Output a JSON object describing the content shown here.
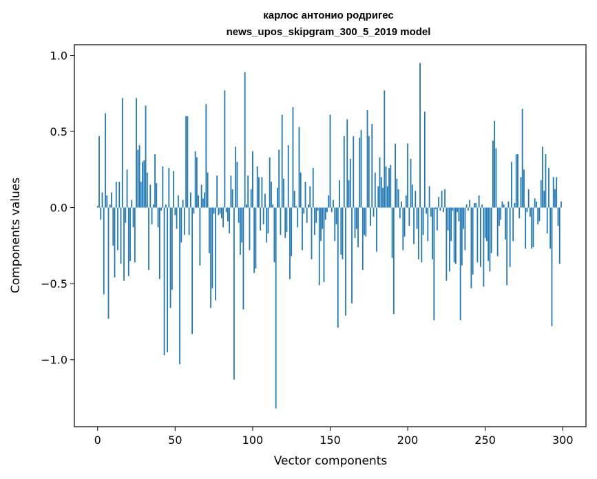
{
  "chart_data": {
    "type": "bar",
    "title": "карлос антонио родригес",
    "subtitle": "news_upos_skipgram_300_5_2019 model",
    "xlabel": "Vector components",
    "ylabel": "Components values",
    "xlim": [
      -15,
      315
    ],
    "ylim": [
      -1.44,
      1.07
    ],
    "xticks": [
      0,
      50,
      100,
      150,
      200,
      250,
      300
    ],
    "xtick_labels": [
      "0",
      "50",
      "100",
      "150",
      "200",
      "250",
      "300"
    ],
    "yticks": [
      -1.0,
      -0.5,
      0.0,
      0.5,
      1.0
    ],
    "ytick_labels": [
      "−1.0",
      "−0.5",
      "0.0",
      "0.5",
      "1.0"
    ],
    "grid": false,
    "bar_color": "#1f77b4",
    "values": [
      0.01,
      0.47,
      -0.08,
      0.1,
      -0.57,
      0.62,
      0.08,
      -0.73,
      0.02,
      0.1,
      -0.25,
      -0.46,
      0.17,
      -0.28,
      0.17,
      -0.37,
      0.72,
      -0.48,
      -0.1,
      0.25,
      -0.45,
      -0.35,
      0.05,
      -0.13,
      -0.36,
      0.72,
      0.38,
      0.41,
      0.17,
      0.3,
      0.31,
      0.67,
      0.23,
      -0.41,
      0.15,
      -0.11,
      0.02,
      0.35,
      0.16,
      -0.13,
      -0.47,
      -0.02,
      0.27,
      -0.97,
      0.02,
      -0.95,
      0.26,
      -0.66,
      -0.54,
      0.24,
      -0.05,
      -0.14,
      0.08,
      -1.03,
      -0.23,
      0.05,
      -0.18,
      0.6,
      0.6,
      -0.18,
      0.1,
      -0.83,
      -0.04,
      0.37,
      0.33,
      0.08,
      -0.38,
      0.15,
      0.06,
      0.1,
      0.68,
      0.23,
      -0.3,
      -0.66,
      -0.53,
      -0.04,
      -0.61,
      0.21,
      -0.05,
      -0.04,
      -0.07,
      -0.13,
      0.77,
      -0.03,
      -0.09,
      -0.17,
      0.21,
      0.12,
      -1.13,
      0.4,
      0.3,
      -0.1,
      -0.31,
      -0.23,
      -0.67,
      0.89,
      0.02,
      0.21,
      -0.28,
      0.12,
      0.37,
      -0.43,
      -0.4,
      0.27,
      0.2,
      -0.15,
      0.2,
      -0.11,
      0.09,
      -0.23,
      -0.17,
      0.33,
      0.17,
      0.02,
      -0.36,
      -1.32,
      0.13,
      0.38,
      -0.18,
      0.61,
      0.19,
      -0.2,
      -0.16,
      0.41,
      -0.47,
      -0.32,
      0.66,
      0.11,
      0.01,
      -0.13,
      0.53,
      0.23,
      -0.28,
      -0.04,
      0.17,
      -0.1,
      0.02,
      0.14,
      -0.34,
      0.26,
      -0.18,
      -0.1,
      -0.02,
      -0.51,
      -0.22,
      -0.14,
      -0.49,
      -0.08,
      -0.03,
      0.08,
      0.61,
      -0.03,
      0.05,
      -0.22,
      -0.11,
      -0.79,
      0.18,
      -0.31,
      -0.34,
      0.47,
      -0.71,
      0.58,
      0.18,
      0.32,
      -0.63,
      0.47,
      -0.2,
      -0.14,
      -0.26,
      0.46,
      0.51,
      -0.41,
      -0.18,
      -0.19,
      0.64,
      0.47,
      -0.12,
      0.55,
      -0.06,
      0.23,
      -0.29,
      0.14,
      0.33,
      0.2,
      0.13,
      0.77,
      0.27,
      0.14,
      0.26,
      0.28,
      -0.33,
      -0.7,
      0.42,
      0.19,
      0.12,
      -0.07,
      0.04,
      -0.28,
      -0.19,
      0.08,
      0.42,
      -0.12,
      0.32,
      0.15,
      -0.24,
      0.11,
      -0.14,
      -0.34,
      0.95,
      -0.36,
      -0.18,
      0.63,
      -0.04,
      -0.22,
      0.14,
      -0.06,
      -0.34,
      -0.74,
      -0.01,
      -0.15,
      0.07,
      -0.02,
      0.11,
      -0.03,
      0.12,
      -0.48,
      -0.15,
      -0.42,
      -0.22,
      -0.02,
      -0.36,
      -0.37,
      -0.03,
      -0.09,
      -0.74,
      -0.38,
      -0.14,
      -0.28,
      0.02,
      -0.02,
      0.05,
      -0.53,
      -0.44,
      0.03,
      0.03,
      -0.36,
      0.08,
      -0.39,
      0.02,
      -0.52,
      -0.2,
      -0.22,
      -0.35,
      -0.42,
      -0.3,
      0.44,
      0.57,
      0.39,
      -0.32,
      -0.12,
      -0.08,
      0.04,
      0.02,
      -0.21,
      -0.51,
      0.04,
      -0.39,
      0.3,
      -0.22,
      0.03,
      0.35,
      0.35,
      -0.07,
      0.2,
      0.65,
      0.25,
      -0.27,
      -0.03,
      0.12,
      -0.06,
      -0.27,
      -0.26,
      0.06,
      0.04,
      -0.11,
      -0.09,
      0.18,
      0.4,
      0.11,
      0.35,
      -0.17,
      0.26,
      -0.27,
      -0.78,
      0.2,
      0.12,
      0.2,
      -0.12,
      -0.37,
      0.04
    ]
  }
}
